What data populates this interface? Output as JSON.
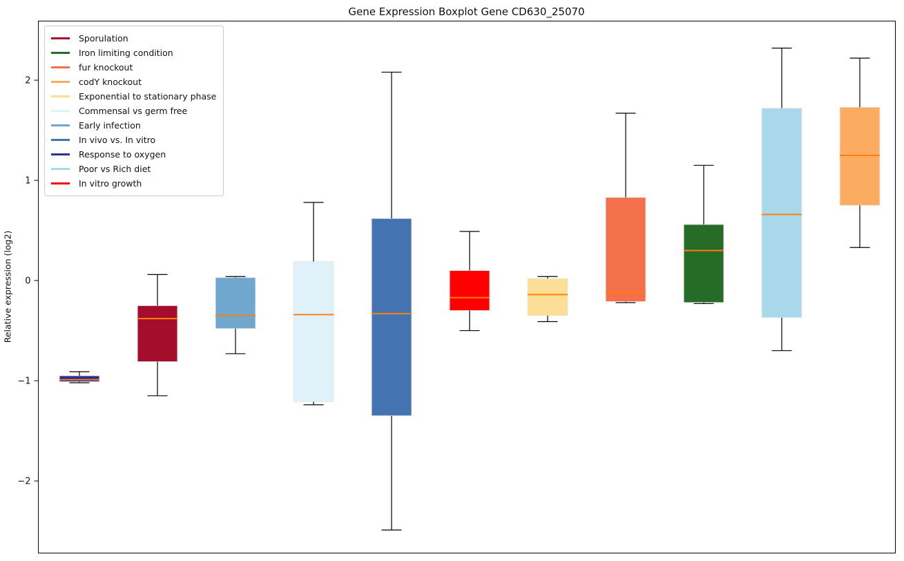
{
  "chart_data": {
    "type": "boxplot",
    "title": "Gene Expression Boxplot Gene CD630_25070",
    "ylabel": "Relative expression (log2)",
    "xlabel": "",
    "x_tick_labels": [],
    "yticks": [
      2,
      1,
      0,
      -1,
      -2
    ],
    "ylim": [
      -2.72,
      2.59
    ],
    "grid": false,
    "legend_position": "upper-left",
    "style": {
      "median_color": "#ff7f0e",
      "whisker_color": "#000000",
      "box_edge_color": "#e8e8e8",
      "axes_edge_color": "#000000",
      "background_color": "#ffffff"
    },
    "boxes": [
      {
        "name": "Response to oxygen",
        "color": "#2c2f8f",
        "whisker_low": -1.02,
        "q1": -1.01,
        "median": -0.99,
        "q3": -0.95,
        "whisker_high": -0.91
      },
      {
        "name": "Sporulation",
        "color": "#a40d2b",
        "whisker_low": -1.15,
        "q1": -0.81,
        "median": -0.38,
        "q3": -0.25,
        "whisker_high": 0.06
      },
      {
        "name": "Early infection",
        "color": "#6fa7ce",
        "whisker_low": -0.73,
        "q1": -0.48,
        "median": -0.35,
        "q3": 0.03,
        "whisker_high": 0.04
      },
      {
        "name": "Commensal vs germ free",
        "color": "#e0f2f9",
        "whisker_low": -1.24,
        "q1": -1.21,
        "median": -0.34,
        "q3": 0.19,
        "whisker_high": 0.78
      },
      {
        "name": "In vivo vs. In vitro",
        "color": "#4473b2",
        "whisker_low": -2.49,
        "q1": -1.35,
        "median": -0.33,
        "q3": 0.62,
        "whisker_high": 2.08
      },
      {
        "name": "In vitro growth",
        "color": "#ff0000",
        "whisker_low": -0.5,
        "q1": -0.3,
        "median": -0.17,
        "q3": 0.1,
        "whisker_high": 0.49
      },
      {
        "name": "Exponential to stationary phase",
        "color": "#fdde96",
        "whisker_low": -0.41,
        "q1": -0.35,
        "median": -0.14,
        "q3": 0.02,
        "whisker_high": 0.04
      },
      {
        "name": "fur knockout",
        "color": "#f3704a",
        "whisker_low": -0.22,
        "q1": -0.21,
        "median": -0.12,
        "q3": 0.83,
        "whisker_high": 1.67
      },
      {
        "name": "Iron limiting condition",
        "color": "#276b28",
        "whisker_low": -0.23,
        "q1": -0.22,
        "median": 0.3,
        "q3": 0.56,
        "whisker_high": 1.15
      },
      {
        "name": "Poor vs Rich diet",
        "color": "#a8d8e9",
        "whisker_low": -0.7,
        "q1": -0.37,
        "median": 0.66,
        "q3": 1.72,
        "whisker_high": 2.32
      },
      {
        "name": "codY knockout",
        "color": "#fbac60",
        "whisker_low": 0.33,
        "q1": 0.75,
        "median": 1.25,
        "q3": 1.73,
        "whisker_high": 2.22
      }
    ],
    "legend": [
      {
        "label": "Sporulation",
        "color": "#a40d2b"
      },
      {
        "label": "Iron limiting condition",
        "color": "#276b28"
      },
      {
        "label": "fur knockout",
        "color": "#f3704a"
      },
      {
        "label": "codY knockout",
        "color": "#fbac60"
      },
      {
        "label": "Exponential to stationary phase",
        "color": "#fdde96"
      },
      {
        "label": "Commensal vs germ free",
        "color": "#e0f2f9"
      },
      {
        "label": "Early infection",
        "color": "#6fa7ce"
      },
      {
        "label": "In vivo vs. In vitro",
        "color": "#4473b2"
      },
      {
        "label": "Response to oxygen",
        "color": "#2c2f8f"
      },
      {
        "label": "Poor vs Rich diet",
        "color": "#a8d8e9"
      },
      {
        "label": "In vitro growth",
        "color": "#ff0000"
      }
    ]
  }
}
